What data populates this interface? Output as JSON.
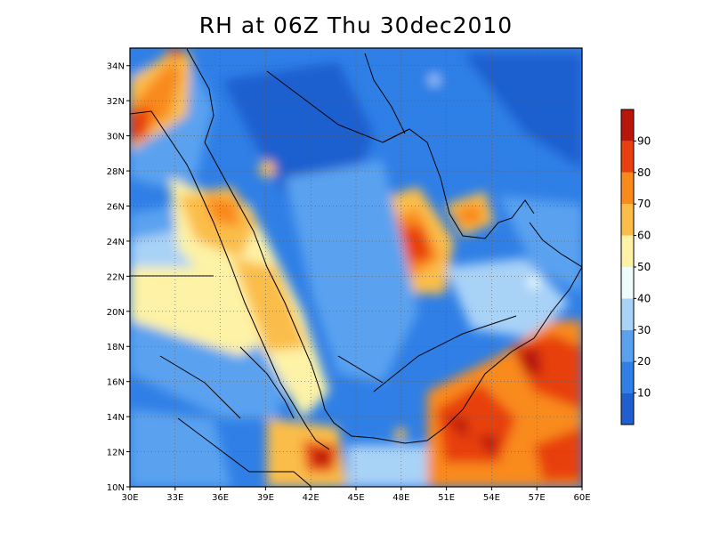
{
  "title": "RH at 06Z Thu 30dec2010",
  "map": {
    "lon_labels": [
      "30E",
      "33E",
      "36E",
      "39E",
      "42E",
      "45E",
      "48E",
      "51E",
      "54E",
      "57E",
      "60E"
    ],
    "lat_labels": [
      "10N",
      "12N",
      "14N",
      "16N",
      "18N",
      "20N",
      "22N",
      "24N",
      "26N",
      "28N",
      "30N",
      "32N",
      "34N"
    ],
    "lon_range": [
      30,
      60
    ],
    "lat_range": [
      10,
      35
    ],
    "grid": "dotted"
  },
  "colorbar": {
    "labels": [
      "10",
      "20",
      "30",
      "40",
      "50",
      "60",
      "70",
      "80",
      "90"
    ],
    "colors": [
      "#1f5fcf",
      "#2f7fe6",
      "#5aa2f0",
      "#a9d2f7",
      "#eefcfc",
      "#fdf2a6",
      "#fbbd4a",
      "#f98a1c",
      "#e8400e",
      "#b8150b"
    ]
  }
}
